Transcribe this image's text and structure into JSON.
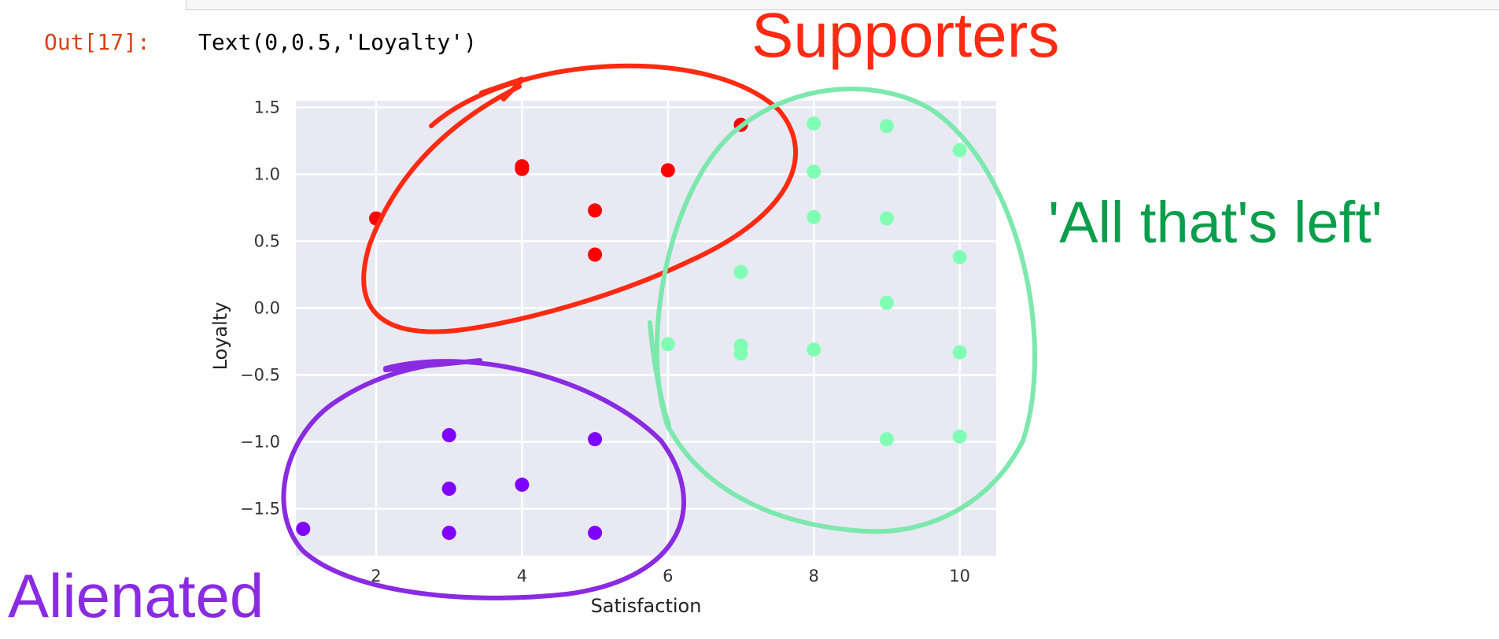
{
  "notebook": {
    "out_prompt": "Out[17]:",
    "out_text": "Text(0,0.5,'Loyalty')"
  },
  "annotations": {
    "supporters": {
      "text": "Supporters",
      "color": "#ff2a12"
    },
    "alienated": {
      "text": "Alienated",
      "color": "#8a2be2"
    },
    "all_left": {
      "text": "'All that's left'",
      "color": "#0a9e4c"
    }
  },
  "chart_data": {
    "type": "scatter",
    "xlabel": "Satisfaction",
    "ylabel": "Loyalty",
    "xlim": [
      0.9,
      10.5
    ],
    "ylim": [
      -1.85,
      1.55
    ],
    "xticks": [
      2,
      4,
      6,
      8,
      10
    ],
    "yticks": [
      1.5,
      1.0,
      0.5,
      0.0,
      -0.5,
      -1.0,
      -1.5
    ],
    "ytick_labels": [
      "1.5",
      "1.0",
      "0.5",
      "0.0",
      "−0.5",
      "−1.0",
      "−1.5"
    ],
    "grid": true,
    "background": "#e8e9f3",
    "points": [
      {
        "x": 2,
        "y": 0.67,
        "c": 2
      },
      {
        "x": 4,
        "y": 1.06,
        "c": 2
      },
      {
        "x": 4,
        "y": 1.04,
        "c": 2
      },
      {
        "x": 5,
        "y": 0.73,
        "c": 2
      },
      {
        "x": 5,
        "y": 0.4,
        "c": 2
      },
      {
        "x": 6,
        "y": 1.03,
        "c": 2
      },
      {
        "x": 7,
        "y": 1.37,
        "c": 2
      },
      {
        "x": 8,
        "y": 1.38,
        "c": 1
      },
      {
        "x": 9,
        "y": 1.36,
        "c": 1
      },
      {
        "x": 10,
        "y": 1.18,
        "c": 1
      },
      {
        "x": 8,
        "y": 1.02,
        "c": 1
      },
      {
        "x": 8,
        "y": 0.68,
        "c": 1
      },
      {
        "x": 9,
        "y": 0.67,
        "c": 1
      },
      {
        "x": 10,
        "y": 0.38,
        "c": 1
      },
      {
        "x": 7,
        "y": 0.27,
        "c": 1
      },
      {
        "x": 9,
        "y": 0.04,
        "c": 1
      },
      {
        "x": 6,
        "y": -0.27,
        "c": 1
      },
      {
        "x": 7,
        "y": -0.28,
        "c": 1
      },
      {
        "x": 7,
        "y": -0.34,
        "c": 1
      },
      {
        "x": 8,
        "y": -0.31,
        "c": 1
      },
      {
        "x": 10,
        "y": -0.33,
        "c": 1
      },
      {
        "x": 9,
        "y": -0.98,
        "c": 1
      },
      {
        "x": 10,
        "y": -0.96,
        "c": 1
      },
      {
        "x": 1,
        "y": -1.65,
        "c": 0
      },
      {
        "x": 3,
        "y": -0.95,
        "c": 0
      },
      {
        "x": 3,
        "y": -1.35,
        "c": 0
      },
      {
        "x": 3,
        "y": -1.68,
        "c": 0
      },
      {
        "x": 4,
        "y": -1.32,
        "c": 0
      },
      {
        "x": 5,
        "y": -0.98,
        "c": 0
      },
      {
        "x": 5,
        "y": -1.68,
        "c": 0
      }
    ],
    "cluster_colors": [
      "#8000ff",
      "#80ffb4",
      "#ff0000"
    ]
  }
}
